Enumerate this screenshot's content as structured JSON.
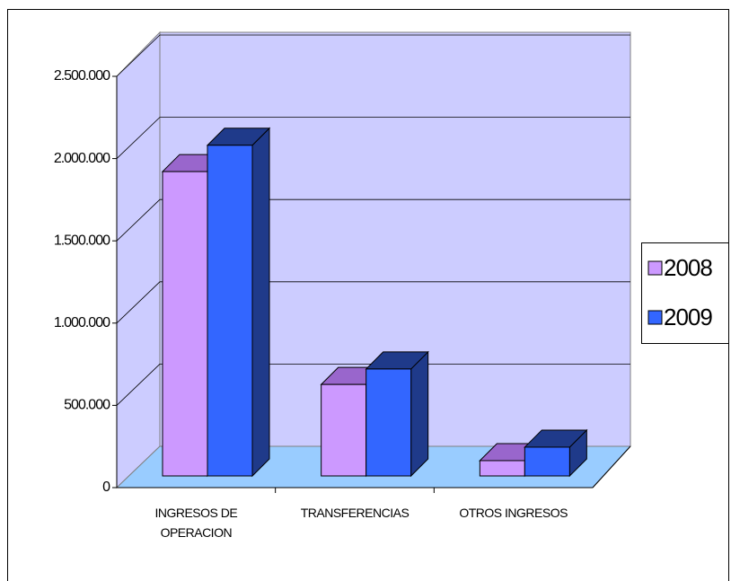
{
  "chart_data": {
    "type": "bar3d",
    "categories": [
      "INGRESOS DE OPERACION",
      "TRANSFERENCIAS",
      "OTROS INGRESOS"
    ],
    "series": [
      {
        "name": "2008",
        "color": "#cc99ff",
        "side": "#9966cc",
        "values": [
          1850000,
          556000,
          93000
        ]
      },
      {
        "name": "2009",
        "color": "#3366ff",
        "side": "#1f3a8a",
        "values": [
          2010000,
          650000,
          175000
        ]
      }
    ],
    "ylim": [
      0,
      2500000
    ],
    "yticks": [
      0,
      {
        "value": 500000,
        "label": "500.000"
      },
      {
        "value": 1000000,
        "label": "1.000.000"
      },
      {
        "value": 1500000,
        "label": "1.500.000"
      },
      {
        "value": 2000000,
        "label": "2.000.000"
      },
      {
        "value": 2500000,
        "label": "2.500.000"
      }
    ],
    "grid": true,
    "legend": "right"
  }
}
